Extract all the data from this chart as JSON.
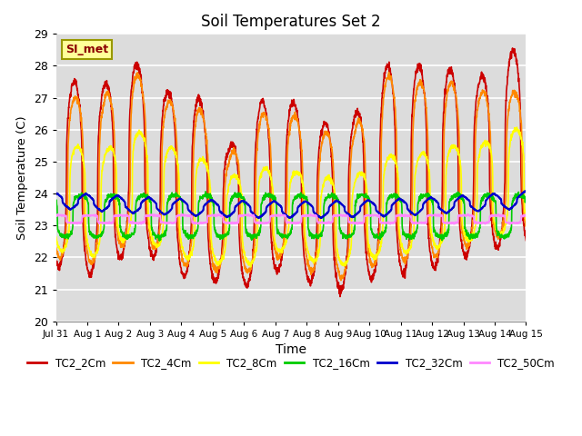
{
  "title": "Soil Temperatures Set 2",
  "xlabel": "Time",
  "ylabel": "Soil Temperature (C)",
  "ylim": [
    20.0,
    29.0
  ],
  "yticks": [
    20.0,
    21.0,
    22.0,
    23.0,
    24.0,
    25.0,
    26.0,
    27.0,
    28.0,
    29.0
  ],
  "annotation": "SI_met",
  "series": [
    {
      "label": "TC2_2Cm",
      "color": "#CC0000",
      "lw": 1.2
    },
    {
      "label": "TC2_4Cm",
      "color": "#FF8800",
      "lw": 1.2
    },
    {
      "label": "TC2_8Cm",
      "color": "#FFFF00",
      "lw": 1.2
    },
    {
      "label": "TC2_16Cm",
      "color": "#00CC00",
      "lw": 1.2
    },
    {
      "label": "TC2_32Cm",
      "color": "#0000CC",
      "lw": 1.5
    },
    {
      "label": "TC2_50Cm",
      "color": "#FF88FF",
      "lw": 1.2
    }
  ],
  "bg_color": "#DCDCDC",
  "grid_color": "#FFFFFF",
  "num_days": 15,
  "pts_per_hour": 6,
  "xtick_labels": [
    "Jul 31",
    "Aug 1",
    "Aug 2",
    "Aug 3",
    "Aug 4",
    "Aug 5",
    "Aug 6",
    "Aug 7",
    "Aug 8",
    "Aug 9",
    "Aug 10",
    "Aug 11",
    "Aug 12",
    "Aug 13",
    "Aug 14",
    "Aug 15"
  ]
}
